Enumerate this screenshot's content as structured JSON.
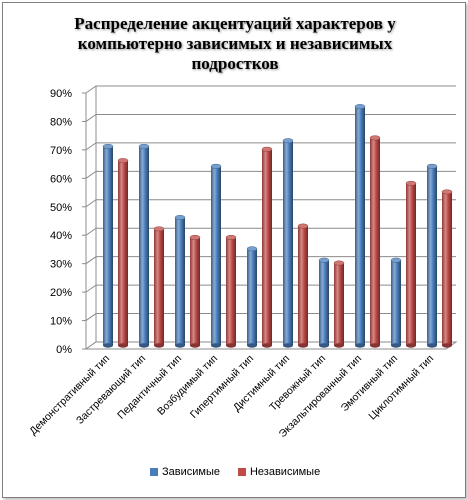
{
  "chart_data": {
    "type": "bar",
    "title": "Распределение акцентуаций характеров у компьютерно зависимых и независимых подростков",
    "categories": [
      "Демонстративный тип",
      "Застревающий тип",
      "Педантичный тип",
      "Возбудимый тип",
      "Гипертимный тип",
      "Дистимный тип",
      "Тревожный тип",
      "Экзальтированный тип",
      "Эмотивный тип",
      "Циклотимный тип"
    ],
    "series": [
      {
        "name": "Зависимые",
        "color": "#4a7ebb",
        "values": [
          70,
          70,
          45,
          63,
          34,
          72,
          30,
          84,
          30,
          63
        ]
      },
      {
        "name": "Независимые",
        "color": "#be4b48",
        "values": [
          65,
          41,
          38,
          38,
          69,
          42,
          29,
          73,
          57,
          54
        ]
      }
    ],
    "yticks": [
      "0%",
      "10%",
      "20%",
      "30%",
      "40%",
      "50%",
      "60%",
      "70%",
      "80%",
      "90%"
    ],
    "ylim": [
      0,
      90
    ],
    "legend_position": "bottom",
    "grid": true
  }
}
